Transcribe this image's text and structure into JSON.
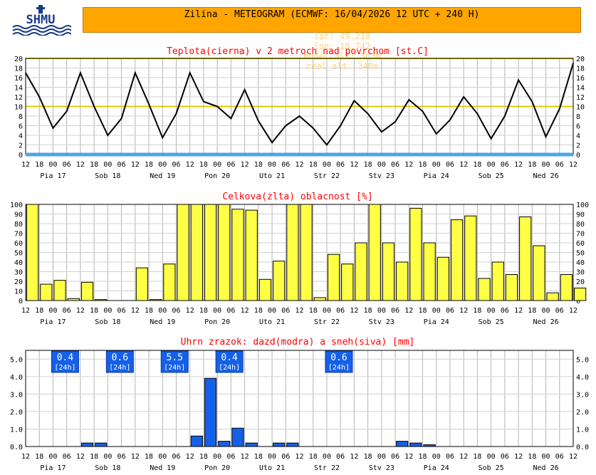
{
  "header": {
    "logo_text": "SHMU",
    "title": "Zilina - METEOGRAM (ECMWF: 16/04/2026 12 UTC + 240 H)",
    "lat": "lat: 49.218",
    "lon": "lon: 18.742",
    "model_alt": "model_alt: 503m",
    "real_alt": "real_alt: 348m"
  },
  "time_axis": {
    "hour_labels": [
      "12",
      "18",
      "00",
      "06",
      "12",
      "18",
      "00",
      "06",
      "12",
      "18",
      "00",
      "06",
      "12",
      "18",
      "00",
      "06",
      "12",
      "18",
      "00",
      "06",
      "12",
      "18",
      "00",
      "06",
      "12",
      "18",
      "00",
      "06",
      "12",
      "18",
      "00",
      "06",
      "12",
      "18",
      "00",
      "06",
      "12",
      "18",
      "00",
      "06",
      "12"
    ],
    "day_labels": [
      "Pia 17",
      "Sob 18",
      "Ned 19",
      "Pon 20",
      "Uto 21",
      "Str 22",
      "Stv 23",
      "Pia 24",
      "Sob 25",
      "Ned 26"
    ]
  },
  "chart_data": [
    {
      "type": "line",
      "title": "Teplota(cierna) v 2 metroch nad povrchom [st.C]",
      "ylim": [
        0,
        20
      ],
      "yticks": [
        "0",
        "2",
        "4",
        "6",
        "8",
        "10",
        "12",
        "14",
        "16",
        "18",
        "20"
      ],
      "reference_lines": [
        10,
        20
      ],
      "colors": {
        "line": "#000000",
        "reference": "#ddcc00",
        "ground": "#4ca6e6",
        "grid": "#aaaaaa",
        "title": "#ff0000"
      },
      "x_step_hours": 6,
      "values": [
        17,
        12,
        5.5,
        9,
        17,
        10,
        4,
        7.5,
        17,
        10.5,
        3.5,
        8.5,
        17,
        11,
        10,
        7.5,
        13.5,
        7,
        2.5,
        6,
        8,
        5.5,
        2,
        6,
        11.2,
        8.5,
        4.7,
        6.8,
        11.4,
        9,
        4.3,
        7.2,
        12,
        8.5,
        3.3,
        8,
        15.5,
        11,
        3.7,
        9.5,
        19
      ]
    },
    {
      "type": "bar",
      "title": "Celkova(zlta) oblacnost [%]",
      "ylim": [
        0,
        100
      ],
      "yticks": [
        "0",
        "10",
        "20",
        "30",
        "40",
        "50",
        "60",
        "70",
        "80",
        "90",
        "100"
      ],
      "colors": {
        "bar": "#ffff44",
        "title": "#ff0000"
      },
      "values": [
        100,
        17,
        21,
        2,
        19,
        1,
        0,
        0,
        34,
        1,
        38,
        100,
        100,
        100,
        100,
        95,
        94,
        22,
        41,
        100,
        100,
        3,
        48,
        38,
        60,
        100,
        60,
        40,
        96,
        60,
        45,
        84,
        88,
        23,
        40,
        27,
        87,
        57,
        8,
        27,
        13
      ]
    },
    {
      "type": "bar",
      "title": "Uhrn zrazok: dazd(modra) a sneh(siva) [mm]",
      "ylim": [
        0,
        5.5
      ],
      "yticks": [
        "0.0",
        "1.0",
        "2.0",
        "3.0",
        "4.0",
        "5.0"
      ],
      "colors": {
        "bar": "#1560e8",
        "title": "#ff0000",
        "badge": "#1560e8"
      },
      "values": [
        0,
        0,
        0,
        0,
        0.2,
        0.2,
        0,
        0,
        0,
        0,
        0,
        0,
        0.6,
        3.9,
        0.3,
        1.05,
        0.2,
        0,
        0.2,
        0.2,
        0,
        0,
        0,
        0,
        0,
        0,
        0,
        0.3,
        0.2,
        0.1,
        0,
        0,
        0,
        0,
        0,
        0,
        0,
        0,
        0,
        0
      ],
      "daily_totals": [
        {
          "slot": 2,
          "value": "0.4",
          "period": "[24h]"
        },
        {
          "slot": 6,
          "value": "0.6",
          "period": "[24h]"
        },
        {
          "slot": 10,
          "value": "5.5",
          "period": "[24h]"
        },
        {
          "slot": 14,
          "value": "0.4",
          "period": "[24h]"
        },
        {
          "slot": 22,
          "value": "0.6",
          "period": "[24h]"
        }
      ]
    }
  ]
}
